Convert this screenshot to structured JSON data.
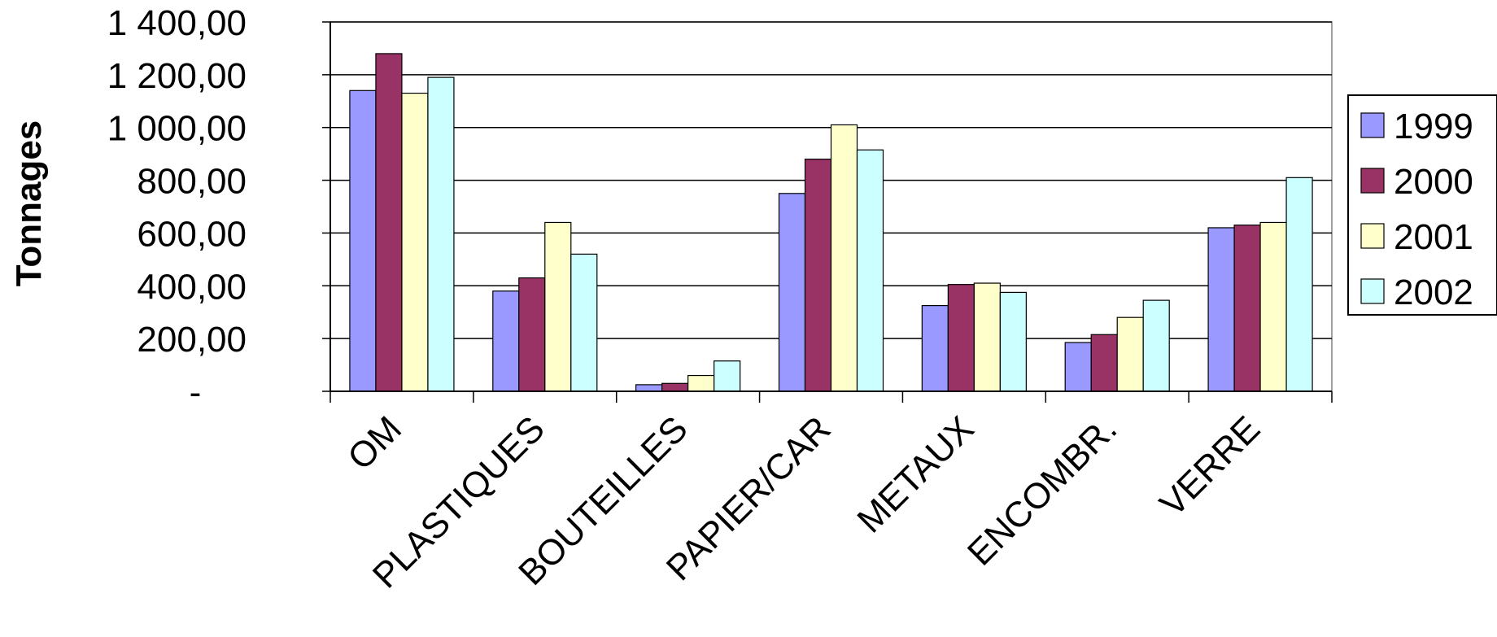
{
  "chart_data": {
    "type": "bar",
    "ylabel": "Tonnages",
    "ylim": [
      0,
      1400
    ],
    "ytick_values": [
      0,
      200,
      400,
      600,
      800,
      1000,
      1200,
      1400
    ],
    "ytick_labels": [
      "-",
      "200,00",
      "400,00",
      "600,00",
      "800,00",
      "1 000,00",
      "1 200,00",
      "1 400,00"
    ],
    "grid": true,
    "legend_position": "right",
    "categories": [
      "OM",
      "PLASTIQUES",
      "BOUTEILLES",
      "PAPIER/CAR",
      "METAUX",
      "ENCOMBR.",
      "VERRE"
    ],
    "series": [
      {
        "name": "1999",
        "color": "#9999FF",
        "values": [
          1140,
          380,
          25,
          750,
          325,
          185,
          620
        ]
      },
      {
        "name": "2000",
        "color": "#993366",
        "values": [
          1280,
          430,
          30,
          880,
          405,
          215,
          630
        ]
      },
      {
        "name": "2001",
        "color": "#FFFFCC",
        "values": [
          1130,
          640,
          60,
          1010,
          410,
          280,
          640
        ]
      },
      {
        "name": "2002",
        "color": "#CCFFFF",
        "values": [
          1190,
          520,
          115,
          915,
          375,
          345,
          810
        ]
      }
    ]
  }
}
